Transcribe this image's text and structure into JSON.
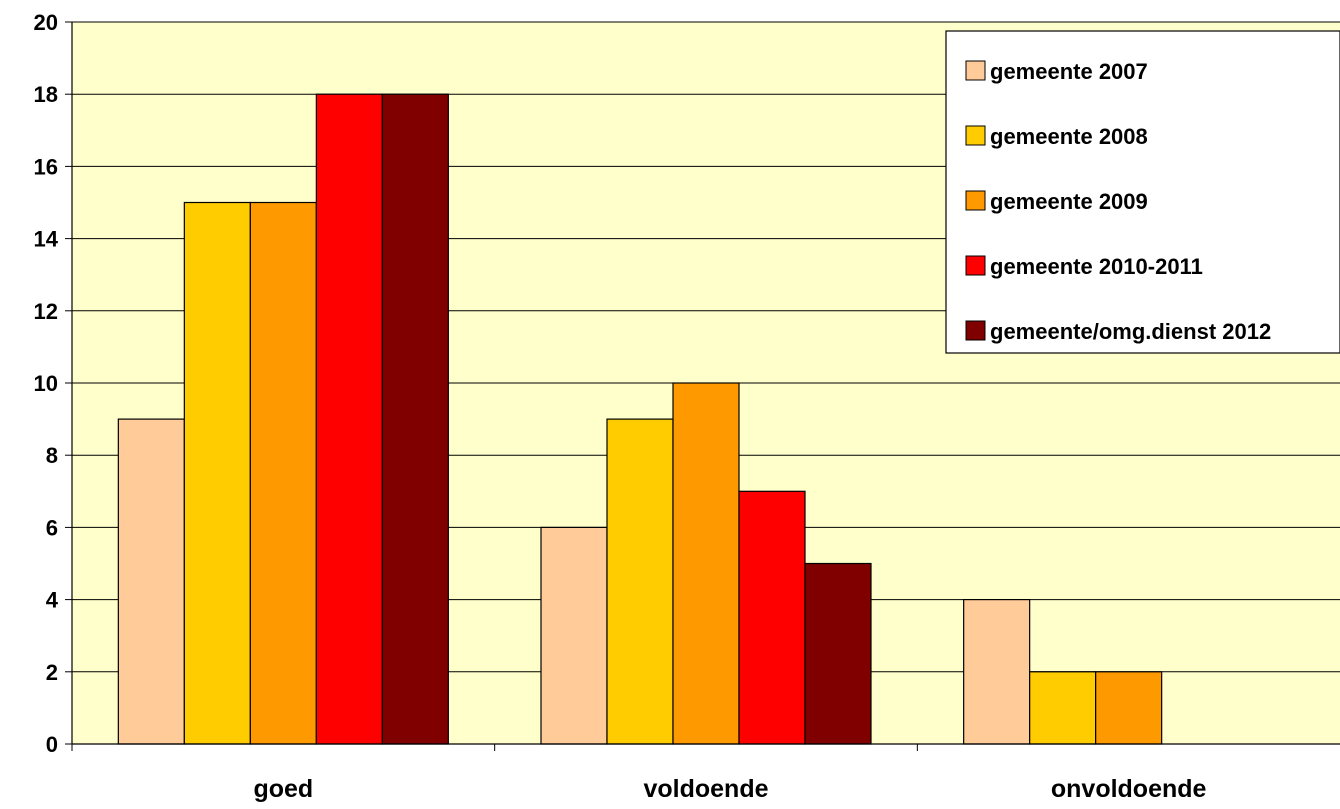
{
  "chart_data": {
    "type": "bar",
    "title": "",
    "xlabel": "",
    "ylabel": "",
    "categories": [
      "goed",
      "voldoende",
      "onvoldoende"
    ],
    "series": [
      {
        "name": "gemeente 2007",
        "color": "#FFCC99",
        "values": [
          9,
          6,
          4
        ]
      },
      {
        "name": "gemeente 2008",
        "color": "#FFCC00",
        "values": [
          15,
          9,
          2
        ]
      },
      {
        "name": "gemeente 2009",
        "color": "#FF9900",
        "values": [
          15,
          10,
          2
        ]
      },
      {
        "name": "gemeente 2010-2011",
        "color": "#FF0000",
        "values": [
          18,
          7,
          0
        ]
      },
      {
        "name": "gemeente/omg.dienst 2012",
        "color": "#800000",
        "values": [
          18,
          5,
          0
        ]
      }
    ],
    "ylim": [
      0,
      20
    ],
    "yticks": [
      0,
      2,
      4,
      6,
      8,
      10,
      12,
      14,
      16,
      18,
      20
    ],
    "grid": true,
    "legend_position": "top-right",
    "plot_background": "#FFFFCC"
  }
}
